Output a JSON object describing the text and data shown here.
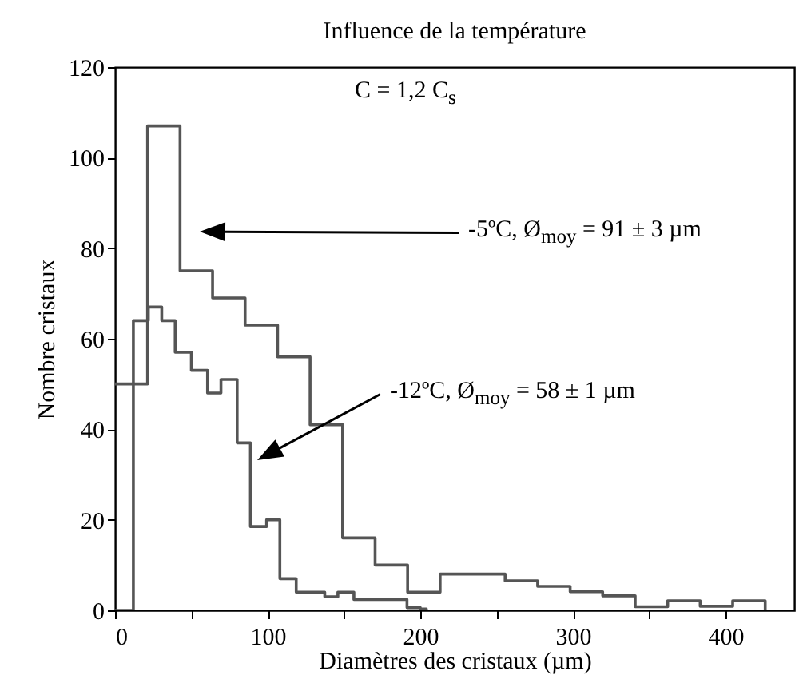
{
  "chart_data": {
    "type": "step",
    "title": "Influence de la température",
    "xlabel": "Diamètres des cristaux (µm)",
    "ylabel": "Nombre cristaux",
    "series": [
      {
        "color": "#555555",
        "x": [
          0,
          21.3,
          42.6,
          63.9,
          85.2,
          106.5,
          127.8,
          149.1,
          170.4,
          191.7,
          213,
          234.3,
          255.6,
          276.9,
          298.2,
          319.5,
          340.8,
          362.1,
          383.4,
          404.7,
          426
        ],
        "values": [
          50,
          107,
          75,
          69,
          63,
          56,
          41,
          16,
          10,
          4,
          8,
          8,
          6.5,
          5.3,
          4.1,
          3.2,
          0.8,
          2.1,
          0.9,
          2.1,
          0
        ]
      },
      {
        "color": "#555555",
        "x": [
          0,
          12,
          21.8,
          30.6,
          39.4,
          50,
          60.6,
          69.4,
          80,
          88.7,
          99.3,
          108,
          118.7,
          128.7,
          137.4,
          146,
          156.5,
          191.3,
          200,
          204
        ],
        "values": [
          0,
          64,
          67,
          64,
          57,
          53,
          48,
          51,
          37,
          18.5,
          20,
          7,
          4,
          4,
          3,
          4,
          2.4,
          0.6,
          0.3,
          0
        ]
      }
    ],
    "annotations": [
      "C = 1,2 C$_{s}$",
      "-5ºC, Ø$_{moy}$ = 91 ±  3 µm",
      "-12ºC, Ø$_{moy}$ = 58 ± 1 µm"
    ],
    "xlim": [
      0,
      445
    ],
    "ylim": [
      0,
      120
    ],
    "xticks": [
      0,
      {
        "value": 50,
        "label": null
      },
      100,
      {
        "value": 150,
        "label": null
      },
      200,
      {
        "value": 250,
        "label": null
      },
      300,
      {
        "value": 350,
        "label": null
      },
      400
    ],
    "yticks": [
      0,
      20,
      40,
      60,
      80,
      100,
      120
    ],
    "grid": false
  }
}
